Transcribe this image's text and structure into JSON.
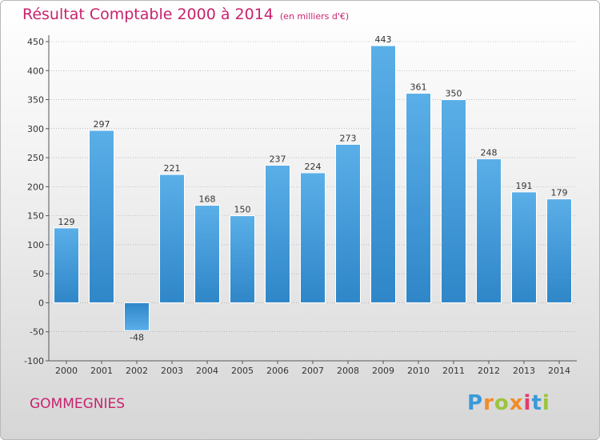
{
  "header": {
    "title": "Résultat Comptable 2000 à 2014",
    "subtitle": "(en milliers d'€)"
  },
  "footer": {
    "commune": "GOMMEGNIES",
    "logo_letters": [
      "P",
      "r",
      "o",
      "x",
      "i",
      "t",
      "i"
    ]
  },
  "colors": {
    "title": "#c8236e",
    "bar_top": "#5aafe8",
    "bar_bottom": "#2f86c8",
    "neg_top": "#2f86c8",
    "neg_bottom": "#5aafe8"
  },
  "chart_data": {
    "type": "bar",
    "title": "Résultat Comptable 2000 à 2014",
    "subtitle": "(en milliers d'€)",
    "xlabel": "",
    "ylabel": "",
    "categories": [
      "2000",
      "2001",
      "2002",
      "2003",
      "2004",
      "2005",
      "2006",
      "2007",
      "2008",
      "2009",
      "2010",
      "2011",
      "2012",
      "2013",
      "2014"
    ],
    "values": [
      129,
      297,
      -48,
      221,
      168,
      150,
      237,
      224,
      273,
      443,
      361,
      350,
      248,
      191,
      179
    ],
    "data_labels": [
      "129",
      "297",
      "-48",
      "221",
      "168",
      "150",
      "237",
      "224",
      "273",
      "443",
      "361",
      "350",
      "248",
      "191",
      "179"
    ],
    "ylim": [
      -100,
      450
    ],
    "yticks": [
      -100,
      -50,
      0,
      50,
      100,
      150,
      200,
      250,
      300,
      350,
      400,
      450
    ],
    "grid": true
  }
}
